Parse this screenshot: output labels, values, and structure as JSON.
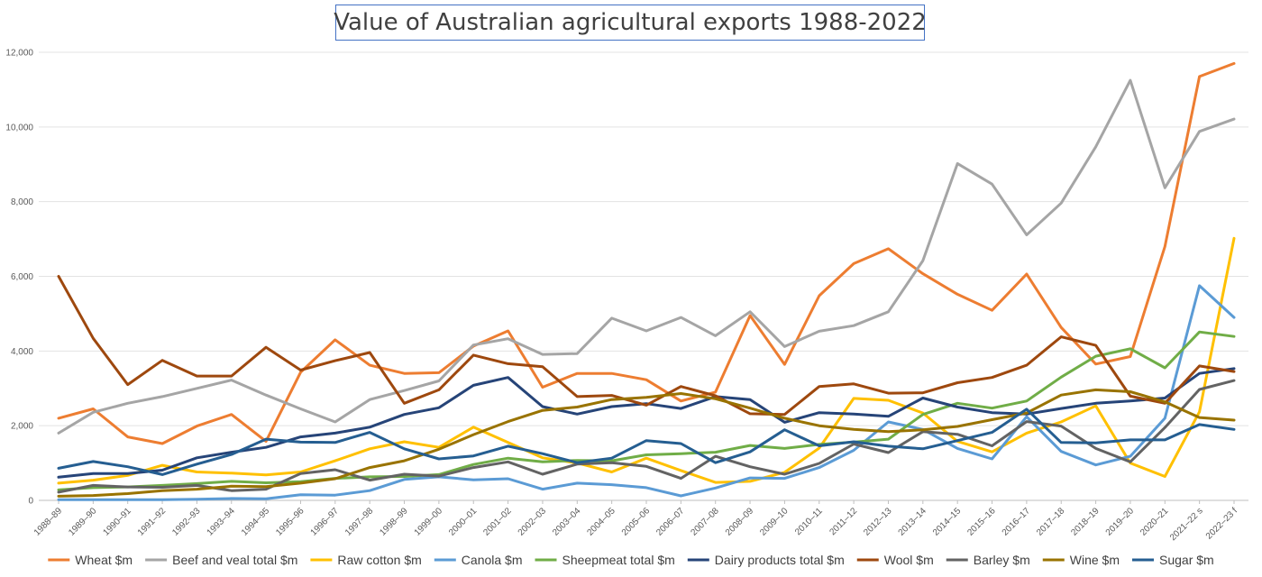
{
  "chart_data": {
    "type": "line",
    "title": "Value of Australian agricultural exports 1988-2022",
    "xlabel": "",
    "ylabel": "",
    "ylim": [
      0,
      12000
    ],
    "yticks": [
      "0",
      "2,000",
      "4,000",
      "6,000",
      "8,000",
      "10,000",
      "12,000"
    ],
    "grid": "horizontal",
    "legend_position": "bottom",
    "x": [
      "1988–89",
      "1989–90",
      "1990–91",
      "1991–92",
      "1992–93",
      "1993–94",
      "1994–95",
      "1995–96",
      "1996–97",
      "1997–98",
      "1998–99",
      "1999–00",
      "2000–01",
      "2001–02",
      "2002–03",
      "2003–04",
      "2004–05",
      "2005–06",
      "2006–07",
      "2007–08",
      "2008–09",
      "2009–10",
      "2010–11",
      "2011–12",
      "2012–13",
      "2013–14",
      "2014–15",
      "2015–16",
      "2016–17",
      "2017–18",
      "2018–19",
      "2019–20",
      "2020–21",
      "2021–22 s",
      "2022–23 f"
    ],
    "series": [
      {
        "name": "Wheat  $m",
        "color": "#ed7d31",
        "values": [
          2200,
          2450,
          1700,
          1520,
          1990,
          2300,
          1580,
          3430,
          4300,
          3620,
          3400,
          3420,
          4130,
          4540,
          3030,
          3400,
          3400,
          3230,
          2660,
          2900,
          4950,
          3640,
          5480,
          6340,
          6740,
          6070,
          5520,
          5090,
          6060,
          4630,
          3650,
          3850,
          6800,
          11350,
          11700
        ]
      },
      {
        "name": "Beef and veal  total $m",
        "color": "#a5a5a5",
        "values": [
          1800,
          2360,
          2600,
          2780,
          3000,
          3220,
          2820,
          2450,
          2100,
          2700,
          2940,
          3200,
          4160,
          4330,
          3910,
          3930,
          4880,
          4540,
          4900,
          4410,
          5050,
          4120,
          4530,
          4680,
          5050,
          6420,
          9020,
          8470,
          7110,
          7960,
          9470,
          11250,
          8370,
          9880,
          10210
        ]
      },
      {
        "name": "Raw cotton   $m",
        "color": "#ffc000",
        "values": [
          460,
          540,
          670,
          940,
          760,
          730,
          680,
          760,
          1060,
          1380,
          1570,
          1420,
          1960,
          1550,
          1140,
          1000,
          760,
          1130,
          800,
          480,
          510,
          750,
          1400,
          2730,
          2680,
          2340,
          1580,
          1300,
          1800,
          2100,
          2530,
          1000,
          640,
          2370,
          7020
        ]
      },
      {
        "name": "Canola $m",
        "color": "#5b9bd5",
        "values": [
          20,
          20,
          20,
          20,
          30,
          50,
          40,
          150,
          140,
          260,
          560,
          630,
          550,
          580,
          300,
          460,
          420,
          340,
          120,
          330,
          600,
          590,
          880,
          1340,
          2100,
          1900,
          1390,
          1110,
          2240,
          1310,
          950,
          1180,
          2200,
          5750,
          4900
        ]
      },
      {
        "name": "Sheepmeat total $m",
        "color": "#70ad47",
        "values": [
          280,
          340,
          360,
          400,
          450,
          510,
          470,
          500,
          590,
          630,
          640,
          690,
          960,
          1130,
          1030,
          1070,
          1060,
          1220,
          1250,
          1290,
          1470,
          1390,
          1500,
          1560,
          1640,
          2300,
          2600,
          2470,
          2660,
          3300,
          3860,
          4060,
          3550,
          4510,
          4390
        ]
      },
      {
        "name": "Dairy products total $m",
        "color": "#264478",
        "values": [
          620,
          720,
          720,
          810,
          1140,
          1290,
          1420,
          1700,
          1800,
          1960,
          2300,
          2480,
          3080,
          3290,
          2510,
          2310,
          2510,
          2590,
          2460,
          2780,
          2700,
          2090,
          2350,
          2310,
          2250,
          2740,
          2500,
          2350,
          2310,
          2460,
          2600,
          2660,
          2740,
          3400,
          3530
        ]
      },
      {
        "name": "Wool $m",
        "color": "#9e480e",
        "values": [
          6000,
          4340,
          3100,
          3750,
          3330,
          3330,
          4100,
          3490,
          3740,
          3960,
          2600,
          2960,
          3890,
          3660,
          3580,
          2780,
          2810,
          2550,
          3050,
          2800,
          2320,
          2300,
          3050,
          3120,
          2870,
          2880,
          3150,
          3290,
          3620,
          4380,
          4150,
          2790,
          2600,
          3600,
          3450
        ]
      },
      {
        "name": "Barley  $m",
        "color": "#636363",
        "values": [
          220,
          400,
          360,
          350,
          400,
          260,
          300,
          720,
          820,
          540,
          700,
          650,
          880,
          1030,
          700,
          970,
          1010,
          910,
          590,
          1180,
          900,
          700,
          990,
          1510,
          1280,
          1840,
          1770,
          1460,
          2110,
          1990,
          1390,
          1030,
          1950,
          2970,
          3210
        ]
      },
      {
        "name": "Wine $m",
        "color": "#997300",
        "values": [
          110,
          130,
          180,
          260,
          300,
          380,
          370,
          460,
          580,
          880,
          1060,
          1370,
          1760,
          2110,
          2410,
          2500,
          2700,
          2760,
          2860,
          2720,
          2470,
          2200,
          2000,
          1900,
          1840,
          1890,
          1980,
          2160,
          2340,
          2820,
          2960,
          2910,
          2640,
          2220,
          2150
        ]
      },
      {
        "name": "Sugar $m",
        "color": "#255e91",
        "values": [
          860,
          1040,
          900,
          690,
          970,
          1230,
          1640,
          1560,
          1550,
          1820,
          1380,
          1110,
          1190,
          1450,
          1250,
          1010,
          1130,
          1600,
          1520,
          1010,
          1300,
          1890,
          1460,
          1570,
          1450,
          1380,
          1600,
          1820,
          2440,
          1550,
          1540,
          1620,
          1620,
          2030,
          1900
        ]
      }
    ]
  }
}
